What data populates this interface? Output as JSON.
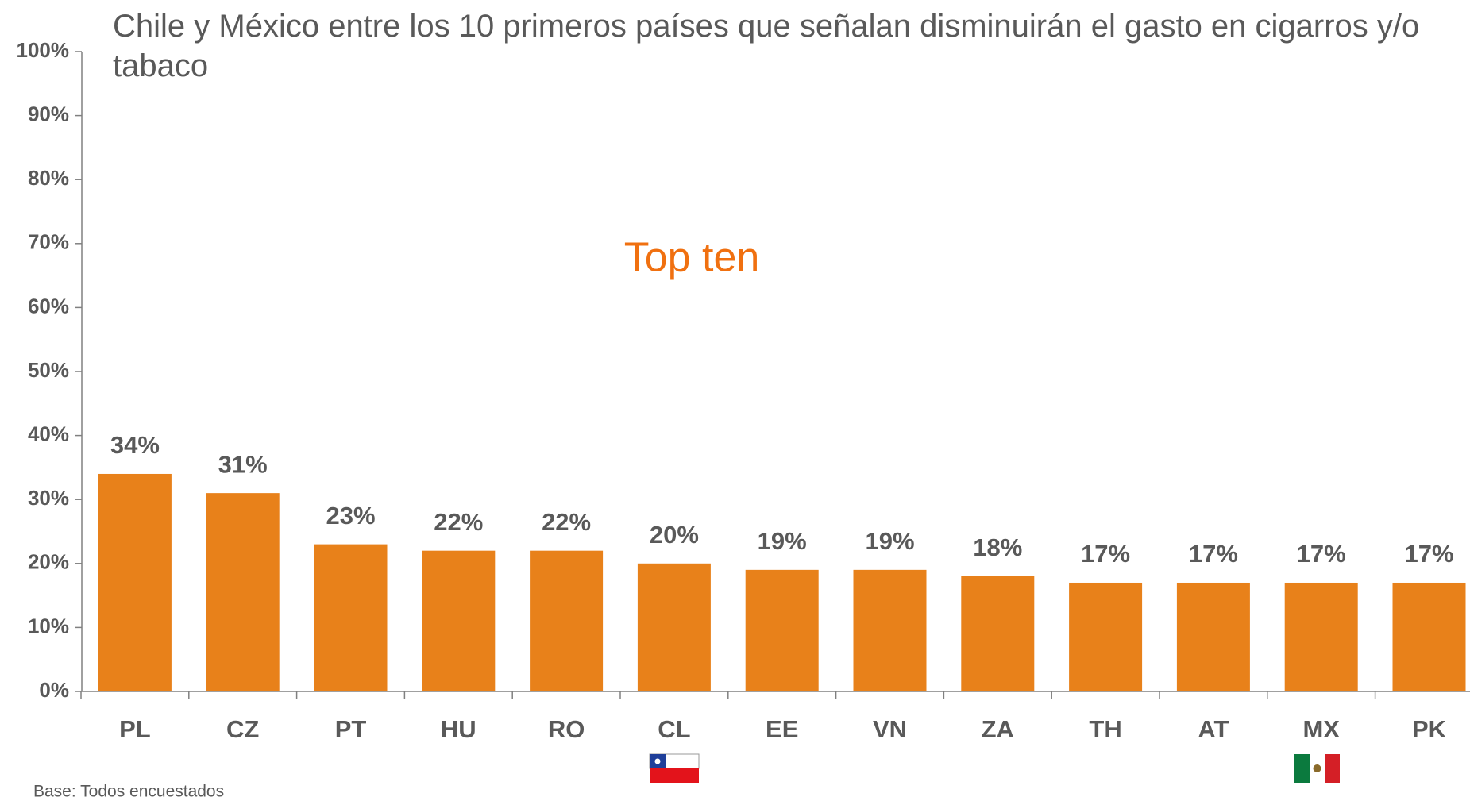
{
  "chart_data": {
    "type": "bar",
    "title": "Chile y México entre los 10 primeros países que señalan disminuirán el gasto en cigarros y/o tabaco",
    "annotation": "Top ten",
    "footnote": "Base: Todos encuestados",
    "categories": [
      "PL",
      "CZ",
      "PT",
      "HU",
      "RO",
      "CL",
      "EE",
      "VN",
      "ZA",
      "TH",
      "AT",
      "MX",
      "PK"
    ],
    "values": [
      34,
      31,
      23,
      22,
      22,
      20,
      19,
      19,
      18,
      17,
      17,
      17,
      17
    ],
    "value_labels": [
      "34%",
      "31%",
      "23%",
      "22%",
      "22%",
      "20%",
      "19%",
      "19%",
      "18%",
      "17%",
      "17%",
      "17%",
      "17%"
    ],
    "color": "#e8811a",
    "ylim": [
      0,
      100
    ],
    "yticks": [
      {
        "value": 0,
        "label": "0%"
      },
      {
        "value": 10,
        "label": "10%"
      },
      {
        "value": 20,
        "label": "20%"
      },
      {
        "value": 30,
        "label": "30%"
      },
      {
        "value": 40,
        "label": "40%"
      },
      {
        "value": 50,
        "label": "50%"
      },
      {
        "value": 60,
        "label": "60%"
      },
      {
        "value": 70,
        "label": "70%"
      },
      {
        "value": 80,
        "label": "80%"
      },
      {
        "value": 90,
        "label": "90%"
      },
      {
        "value": 100,
        "label": "100%"
      }
    ],
    "grid": false
  }
}
